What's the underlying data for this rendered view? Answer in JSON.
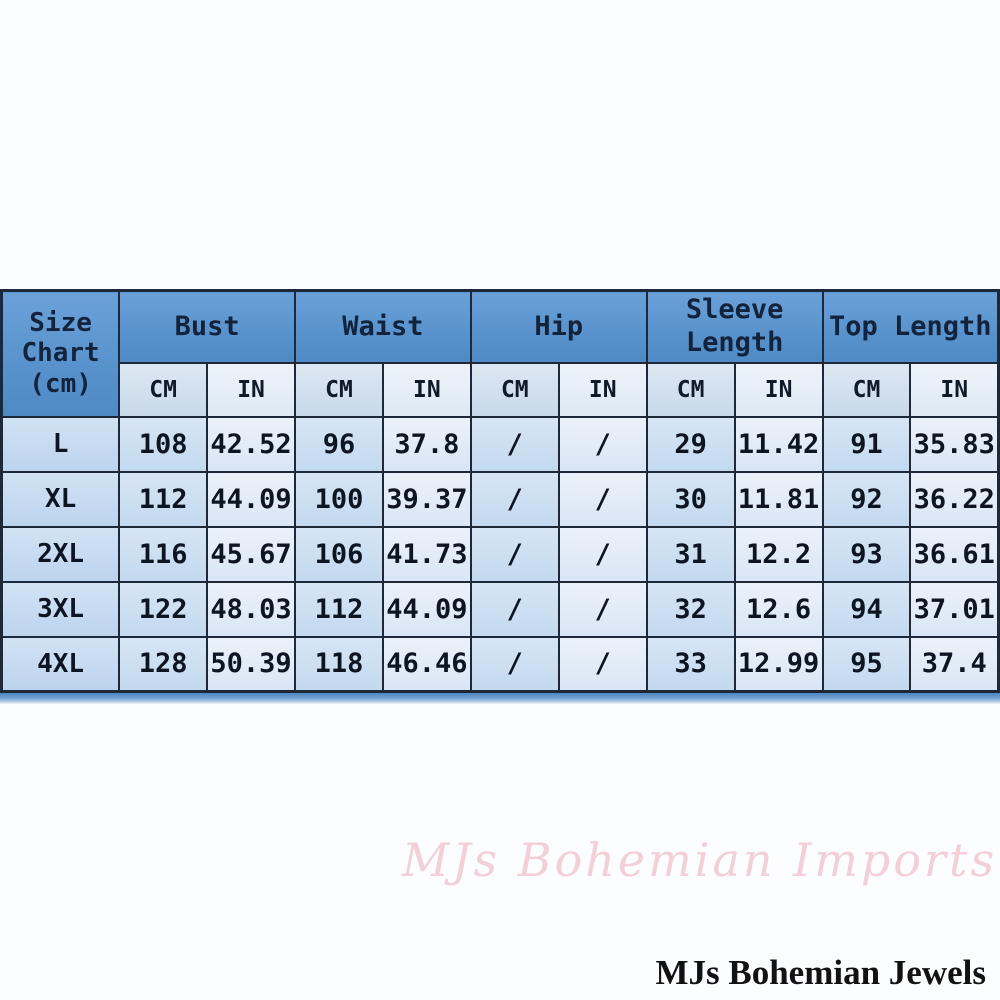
{
  "table": {
    "corner": "Size Chart (cm)",
    "groups": [
      "Bust",
      "Waist",
      "Hip",
      "Sleeve Length",
      "Top Length"
    ],
    "unit_cm": "CM",
    "unit_in": "IN",
    "rows": [
      [
        "L",
        "108",
        "42.52",
        "96",
        "37.8",
        "/",
        "/",
        "29",
        "11.42",
        "91",
        "35.83"
      ],
      [
        "XL",
        "112",
        "44.09",
        "100",
        "39.37",
        "/",
        "/",
        "30",
        "11.81",
        "92",
        "36.22"
      ],
      [
        "2XL",
        "116",
        "45.67",
        "106",
        "41.73",
        "/",
        "/",
        "31",
        "12.2",
        "93",
        "36.61"
      ],
      [
        "3XL",
        "122",
        "48.03",
        "112",
        "44.09",
        "/",
        "/",
        "32",
        "12.6",
        "94",
        "37.01"
      ],
      [
        "4XL",
        "128",
        "50.39",
        "118",
        "46.46",
        "/",
        "/",
        "33",
        "12.99",
        "95",
        "37.4"
      ]
    ]
  },
  "watermark": "MJs Bohemian Imports",
  "brand": "MJs Bohemian Jewels",
  "colors": {
    "header_blue": "#5892cc",
    "cell_light_blue": "#c3d9ef",
    "cell_pale_blue": "#d9e6f5",
    "border_navy": "#1d2939",
    "watermark_pink": "#f3cfd7",
    "brand_text": "#121212"
  }
}
